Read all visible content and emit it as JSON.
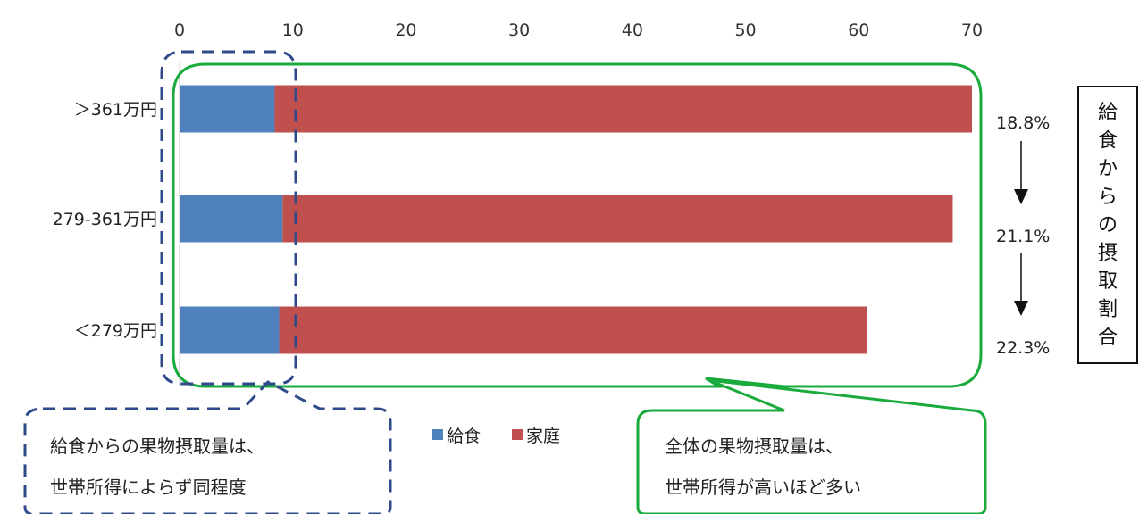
{
  "chart_data": {
    "type": "bar",
    "orientation": "horizontal",
    "stacked": true,
    "categories": [
      "＞361万円",
      "279-361万円",
      "＜279万円"
    ],
    "series": [
      {
        "name": "給食",
        "values": [
          8.4,
          9.1,
          8.8
        ],
        "color": "#4f81bd"
      },
      {
        "name": "家庭",
        "values": [
          61.6,
          59.2,
          51.9
        ],
        "color": "#c0504d"
      }
    ],
    "xlim": [
      0,
      70
    ],
    "xticks": [
      "0",
      "10",
      "20",
      "30",
      "40",
      "50",
      "60",
      "70"
    ],
    "legend_position": "bottom",
    "share_labels": [
      "18.8%",
      "21.1%",
      "22.3%"
    ],
    "side_label": "給食からの摂取割合",
    "annotations": {
      "left_note": [
        "給食からの果物摂取量は、",
        "世帯所得によらず同程度"
      ],
      "right_note": [
        "全体の果物摂取量は、",
        "世帯所得が高いほど多い"
      ]
    },
    "colors": {
      "blue_highlight": "#2e4a8a",
      "green_highlight": "#1aab3c"
    }
  }
}
